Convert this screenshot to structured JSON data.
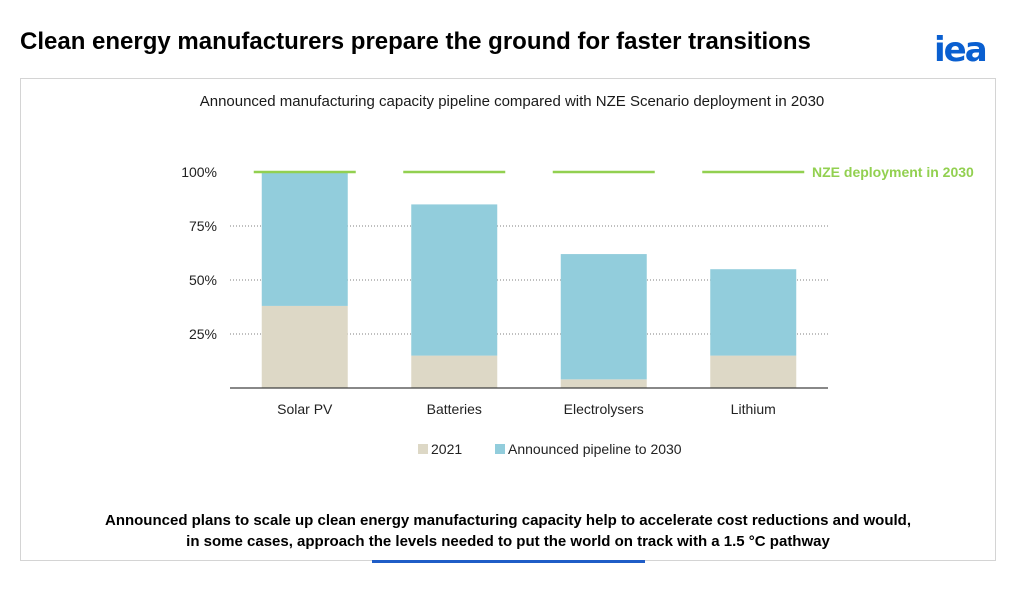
{
  "header": {
    "title": "Clean energy manufacturers prepare the ground for faster transitions",
    "logo_text": "iea"
  },
  "chart_data": {
    "type": "bar",
    "stacked": true,
    "title": "Announced manufacturing capacity pipeline compared with NZE Scenario deployment in 2030",
    "categories": [
      "Solar PV",
      "Batteries",
      "Electrolysers",
      "Lithium"
    ],
    "series": [
      {
        "name": "2021",
        "color": "#ddd8c6",
        "values": [
          38,
          15,
          4,
          15
        ]
      },
      {
        "name": "Announced pipeline to 2030",
        "color": "#92cddc",
        "values": [
          62,
          70,
          58,
          40
        ]
      }
    ],
    "reference": {
      "label": "NZE deployment in 2030",
      "value": 100,
      "color": "#92d050"
    },
    "y_ticks": [
      "25%",
      "50%",
      "75%",
      "100%"
    ],
    "y_tick_values": [
      25,
      50,
      75,
      100
    ],
    "ylim": [
      0,
      100
    ],
    "grid": "dotted horizontal",
    "legend_position": "bottom"
  },
  "footer": {
    "takeaway_line1": "Announced plans to scale up clean energy manufacturing capacity help to accelerate cost reductions and would,",
    "takeaway_line2": "in some cases, approach the levels needed to put the world on track with a 1.5 °C pathway",
    "accent_color": "#1f5dc7"
  }
}
